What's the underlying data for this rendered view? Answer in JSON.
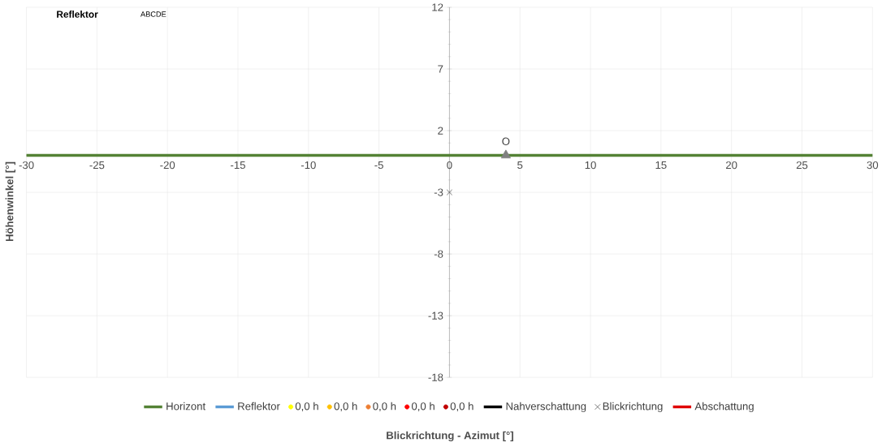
{
  "chart_data": {
    "type": "line",
    "xlabel": "Blickrichtung - Azimut [°]",
    "ylabel": "Höhenwinkel [°]",
    "annotations": [
      "Reflektor",
      "ABCDE",
      {
        "text": "O",
        "x": 4,
        "y": 0
      }
    ],
    "xlim": [
      -30,
      30
    ],
    "xticks": [
      -30,
      -25,
      -20,
      -15,
      -10,
      -5,
      0,
      5,
      10,
      15,
      20,
      25,
      30
    ],
    "ylim": [
      -18,
      12
    ],
    "yticks": [
      -18,
      -13,
      -8,
      -3,
      2,
      7,
      12
    ],
    "grid": true,
    "legend": "bottom",
    "series": [
      {
        "name": "Horizont",
        "color": "#548235",
        "x": [
          -30,
          30
        ],
        "values": [
          0,
          0
        ]
      },
      {
        "name": "Reflektor",
        "type": "line",
        "color": "#5b9bd5"
      },
      {
        "name": "0,0 h",
        "type": "scatter",
        "marker": "circle",
        "color": "#ffff00"
      },
      {
        "name": "0,0 h",
        "type": "scatter",
        "marker": "circle",
        "color": "#ffc000"
      },
      {
        "name": "0,0 h",
        "type": "scatter",
        "marker": "circle",
        "color": "#ed7d31"
      },
      {
        "name": "0,0 h",
        "type": "scatter",
        "marker": "circle",
        "color": "#ff0000"
      },
      {
        "name": "0,0 h",
        "type": "scatter",
        "marker": "circle",
        "color": "#c00000"
      },
      {
        "name": "Nahverschattung",
        "type": "line",
        "color": "#000000"
      },
      {
        "name": "Blickrichtung",
        "type": "scatter",
        "marker": "cross",
        "color": "#595959",
        "x": [
          0
        ],
        "values": [
          -3
        ]
      },
      {
        "name": "Abschattung",
        "type": "line",
        "color": "#e00000"
      },
      {
        "type": "scatter",
        "marker": "triangle",
        "color": "#808080",
        "x": [
          4
        ],
        "values": [
          0
        ]
      }
    ]
  }
}
